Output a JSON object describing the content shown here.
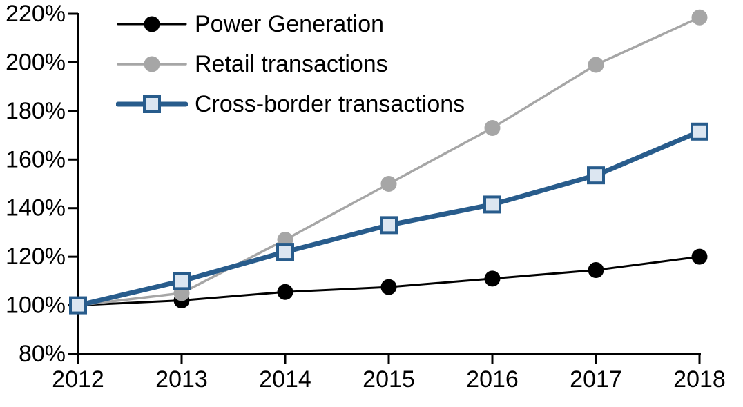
{
  "chart_data": {
    "type": "line",
    "title": "",
    "xlabel": "",
    "ylabel": "",
    "x_labels": [
      "2012",
      "2013",
      "2014",
      "2015",
      "2016",
      "2017",
      "2018"
    ],
    "ylim": [
      80,
      220
    ],
    "ytick_step": 20,
    "ytick_suffix": "%",
    "grid": false,
    "legend_position": "top-left",
    "axis_color": "#000000",
    "series": [
      {
        "name": "Power Generation",
        "color": "#000000",
        "line_width": 3,
        "marker": "circle",
        "marker_fill": "#000000",
        "marker_radius": 11.5,
        "values": [
          100,
          102,
          105.5,
          107.5,
          111,
          114.5,
          120
        ]
      },
      {
        "name": "Retail transactions",
        "color": "#A6A6A6",
        "line_width": 3.5,
        "marker": "circle",
        "marker_fill": "#A6A6A6",
        "marker_radius": 11.5,
        "values": [
          100,
          105,
          127,
          150,
          173,
          199,
          218.5
        ]
      },
      {
        "name": "Cross-border transactions",
        "color": "#285C8C",
        "line_width": 7,
        "marker": "square",
        "marker_fill": "#DCE6F1",
        "marker_size": 22,
        "marker_stroke": 4,
        "values": [
          100,
          110,
          122,
          133,
          141.5,
          153.5,
          171.5
        ]
      }
    ]
  },
  "layout_note": ""
}
